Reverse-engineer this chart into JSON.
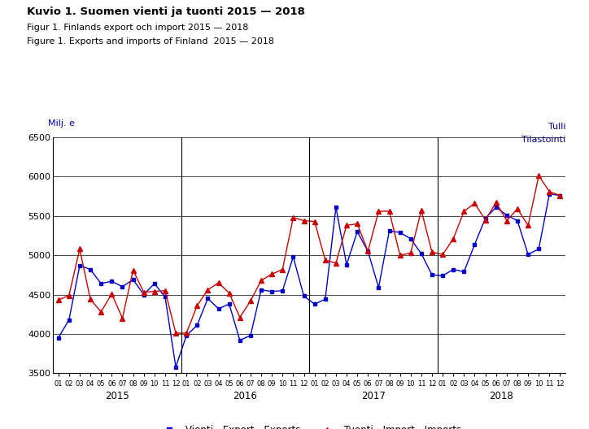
{
  "title_line1": "Kuvio 1. Suomen vienti ja tuonti 2015 — 2018",
  "title_line2": "Figur 1. Finlands export och import 2015 — 2018",
  "title_line3": "Figure 1. Exports and imports of Finland  2015 — 2018",
  "ylabel": "Milj. e",
  "top_right_label1": "Tulli",
  "top_right_label2": "Tilastointi",
  "ylim": [
    3500,
    6500
  ],
  "yticks": [
    3500,
    4000,
    4500,
    5000,
    5500,
    6000,
    6500
  ],
  "legend_export": "Vienti - Export - Exports",
  "legend_import": "Tuonti - Import - Imports",
  "export_color": "#0000cc",
  "import_color": "#cc0000",
  "year_labels": [
    "2015",
    "2016",
    "2017",
    "2018"
  ],
  "month_labels": [
    "01",
    "02",
    "03",
    "04",
    "05",
    "06",
    "07",
    "08",
    "09",
    "10",
    "11",
    "12"
  ],
  "exports": [
    3950,
    4180,
    4870,
    4820,
    4640,
    4670,
    4600,
    4690,
    4500,
    4640,
    4470,
    3580,
    3980,
    4110,
    4450,
    4320,
    4380,
    3920,
    3980,
    4560,
    4540,
    4550,
    4980,
    4480,
    4380,
    4440,
    5610,
    4880,
    5300,
    5050,
    4590,
    5310,
    5290,
    5210,
    5020,
    4750,
    4740,
    4820,
    4790,
    5140,
    5470,
    5610,
    5510,
    5440,
    5010,
    5080,
    5780,
    5760
  ],
  "imports": [
    4430,
    4490,
    5080,
    4440,
    4280,
    4510,
    4200,
    4810,
    4530,
    4540,
    4550,
    4010,
    4010,
    4360,
    4560,
    4650,
    4520,
    4210,
    4420,
    4680,
    4760,
    4820,
    5480,
    5440,
    5430,
    4940,
    4900,
    5380,
    5400,
    5050,
    5560,
    5560,
    5000,
    5030,
    5570,
    5040,
    5010,
    5210,
    5560,
    5660,
    5450,
    5670,
    5440,
    5590,
    5380,
    6010,
    5810,
    5760
  ]
}
